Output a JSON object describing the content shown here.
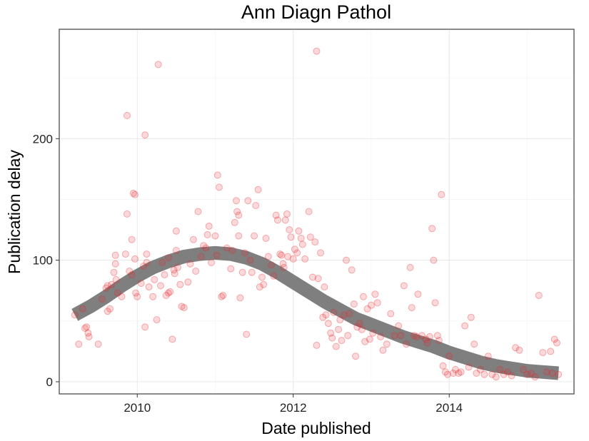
{
  "chart_data": {
    "type": "scatter",
    "title": "Ann Diagn Pathol",
    "xlabel": "Date published",
    "ylabel": "Publication delay",
    "x_axis_type": "date-year",
    "xlim": [
      2009.0,
      2015.6
    ],
    "ylim": [
      -10,
      290
    ],
    "x_ticks": [
      2010,
      2012,
      2014
    ],
    "y_ticks": [
      0,
      100,
      200
    ],
    "grid": true,
    "legend": "none",
    "point_color": "#e8262b",
    "smooth_color": "#7f7f7f",
    "points": [
      [
        2009.2,
        55
      ],
      [
        2009.25,
        31
      ],
      [
        2009.3,
        60
      ],
      [
        2009.33,
        44
      ],
      [
        2009.35,
        45
      ],
      [
        2009.37,
        40
      ],
      [
        2009.38,
        37
      ],
      [
        2009.5,
        31
      ],
      [
        2009.55,
        68
      ],
      [
        2009.6,
        77
      ],
      [
        2009.62,
        79
      ],
      [
        2009.62,
        58
      ],
      [
        2009.65,
        60
      ],
      [
        2009.67,
        80
      ],
      [
        2009.7,
        90
      ],
      [
        2009.72,
        104
      ],
      [
        2009.72,
        97
      ],
      [
        2009.73,
        84
      ],
      [
        2009.75,
        73
      ],
      [
        2009.8,
        70
      ],
      [
        2009.85,
        105
      ],
      [
        2009.87,
        138
      ],
      [
        2009.87,
        219
      ],
      [
        2009.9,
        91
      ],
      [
        2009.93,
        88
      ],
      [
        2009.93,
        117
      ],
      [
        2009.95,
        155
      ],
      [
        2009.97,
        154
      ],
      [
        2009.97,
        101
      ],
      [
        2009.98,
        73
      ],
      [
        2010.0,
        70
      ],
      [
        2010.05,
        81
      ],
      [
        2010.08,
        95
      ],
      [
        2010.1,
        45
      ],
      [
        2010.1,
        203
      ],
      [
        2010.12,
        105
      ],
      [
        2010.12,
        98
      ],
      [
        2010.15,
        78
      ],
      [
        2010.2,
        70
      ],
      [
        2010.22,
        84
      ],
      [
        2010.25,
        51
      ],
      [
        2010.27,
        261
      ],
      [
        2010.3,
        79
      ],
      [
        2010.32,
        98
      ],
      [
        2010.35,
        88
      ],
      [
        2010.37,
        71
      ],
      [
        2010.4,
        73
      ],
      [
        2010.4,
        102
      ],
      [
        2010.42,
        74
      ],
      [
        2010.45,
        35
      ],
      [
        2010.47,
        92
      ],
      [
        2010.48,
        89
      ],
      [
        2010.5,
        124
      ],
      [
        2010.5,
        108
      ],
      [
        2010.52,
        94
      ],
      [
        2010.55,
        80
      ],
      [
        2010.57,
        62
      ],
      [
        2010.6,
        61
      ],
      [
        2010.65,
        82
      ],
      [
        2010.68,
        97
      ],
      [
        2010.72,
        117
      ],
      [
        2010.75,
        91
      ],
      [
        2010.78,
        140
      ],
      [
        2010.82,
        103
      ],
      [
        2010.85,
        112
      ],
      [
        2010.88,
        110
      ],
      [
        2010.9,
        121
      ],
      [
        2010.92,
        128
      ],
      [
        2010.95,
        98
      ],
      [
        2011.0,
        120
      ],
      [
        2011.02,
        104
      ],
      [
        2011.03,
        170
      ],
      [
        2011.05,
        160
      ],
      [
        2011.08,
        70
      ],
      [
        2011.1,
        71
      ],
      [
        2011.15,
        110
      ],
      [
        2011.2,
        93
      ],
      [
        2011.22,
        108
      ],
      [
        2011.25,
        131
      ],
      [
        2011.27,
        149
      ],
      [
        2011.28,
        140
      ],
      [
        2011.3,
        137
      ],
      [
        2011.3,
        120
      ],
      [
        2011.32,
        69
      ],
      [
        2011.35,
        90
      ],
      [
        2011.38,
        106
      ],
      [
        2011.4,
        39
      ],
      [
        2011.42,
        149
      ],
      [
        2011.45,
        100
      ],
      [
        2011.47,
        90
      ],
      [
        2011.5,
        120
      ],
      [
        2011.52,
        145
      ],
      [
        2011.55,
        158
      ],
      [
        2011.57,
        78
      ],
      [
        2011.6,
        86
      ],
      [
        2011.62,
        80
      ],
      [
        2011.65,
        118
      ],
      [
        2011.68,
        103
      ],
      [
        2011.72,
        96
      ],
      [
        2011.75,
        87
      ],
      [
        2011.78,
        137
      ],
      [
        2011.8,
        133
      ],
      [
        2011.83,
        105
      ],
      [
        2011.85,
        104
      ],
      [
        2011.87,
        97
      ],
      [
        2011.88,
        94
      ],
      [
        2011.9,
        133
      ],
      [
        2011.92,
        138
      ],
      [
        2011.93,
        103
      ],
      [
        2011.95,
        125
      ],
      [
        2011.97,
        119
      ],
      [
        2012.0,
        101
      ],
      [
        2012.02,
        109
      ],
      [
        2012.05,
        106
      ],
      [
        2012.07,
        124
      ],
      [
        2012.1,
        118
      ],
      [
        2012.12,
        113
      ],
      [
        2012.15,
        101
      ],
      [
        2012.2,
        140
      ],
      [
        2012.22,
        119
      ],
      [
        2012.25,
        86
      ],
      [
        2012.28,
        115
      ],
      [
        2012.3,
        272
      ],
      [
        2012.3,
        30
      ],
      [
        2012.32,
        85
      ],
      [
        2012.35,
        106
      ],
      [
        2012.38,
        53
      ],
      [
        2012.4,
        78
      ],
      [
        2012.42,
        55
      ],
      [
        2012.45,
        48
      ],
      [
        2012.48,
        40
      ],
      [
        2012.5,
        36
      ],
      [
        2012.52,
        57
      ],
      [
        2012.55,
        29
      ],
      [
        2012.58,
        43
      ],
      [
        2012.6,
        51
      ],
      [
        2012.62,
        34
      ],
      [
        2012.65,
        55
      ],
      [
        2012.68,
        100
      ],
      [
        2012.7,
        38
      ],
      [
        2012.72,
        56
      ],
      [
        2012.75,
        92
      ],
      [
        2012.78,
        64
      ],
      [
        2012.8,
        21
      ],
      [
        2012.82,
        45
      ],
      [
        2012.85,
        48
      ],
      [
        2012.88,
        43
      ],
      [
        2012.9,
        70
      ],
      [
        2012.92,
        33
      ],
      [
        2012.95,
        60
      ],
      [
        2012.98,
        35
      ],
      [
        2013.0,
        63
      ],
      [
        2013.02,
        40
      ],
      [
        2013.05,
        72
      ],
      [
        2013.08,
        65
      ],
      [
        2013.12,
        37
      ],
      [
        2013.15,
        26
      ],
      [
        2013.2,
        31
      ],
      [
        2013.25,
        56
      ],
      [
        2013.3,
        38
      ],
      [
        2013.35,
        46
      ],
      [
        2013.38,
        38
      ],
      [
        2013.42,
        79
      ],
      [
        2013.45,
        31
      ],
      [
        2013.5,
        94
      ],
      [
        2013.52,
        61
      ],
      [
        2013.55,
        38
      ],
      [
        2013.58,
        37
      ],
      [
        2013.6,
        72
      ],
      [
        2013.65,
        38
      ],
      [
        2013.7,
        35
      ],
      [
        2013.72,
        32
      ],
      [
        2013.75,
        37
      ],
      [
        2013.78,
        126
      ],
      [
        2013.8,
        100
      ],
      [
        2013.82,
        65
      ],
      [
        2013.85,
        38
      ],
      [
        2013.87,
        34
      ],
      [
        2013.9,
        154
      ],
      [
        2013.92,
        13
      ],
      [
        2013.95,
        8
      ],
      [
        2013.98,
        6
      ],
      [
        2014.0,
        21
      ],
      [
        2014.05,
        7
      ],
      [
        2014.08,
        10
      ],
      [
        2014.12,
        7
      ],
      [
        2014.15,
        8
      ],
      [
        2014.2,
        46
      ],
      [
        2014.25,
        12
      ],
      [
        2014.28,
        53
      ],
      [
        2014.32,
        31
      ],
      [
        2014.35,
        7
      ],
      [
        2014.4,
        10
      ],
      [
        2014.45,
        6
      ],
      [
        2014.5,
        21
      ],
      [
        2014.55,
        6
      ],
      [
        2014.6,
        4
      ],
      [
        2014.65,
        10
      ],
      [
        2014.7,
        6
      ],
      [
        2014.75,
        8
      ],
      [
        2014.8,
        5
      ],
      [
        2014.85,
        28
      ],
      [
        2014.9,
        26
      ],
      [
        2014.95,
        10
      ],
      [
        2015.0,
        6
      ],
      [
        2015.05,
        7
      ],
      [
        2015.1,
        4
      ],
      [
        2015.15,
        71
      ],
      [
        2015.2,
        24
      ],
      [
        2015.25,
        8
      ],
      [
        2015.3,
        25
      ],
      [
        2015.32,
        7
      ],
      [
        2015.35,
        35
      ],
      [
        2015.38,
        32
      ],
      [
        2015.4,
        6
      ]
    ],
    "smooth": [
      [
        2009.2,
        55
      ],
      [
        2009.4,
        62
      ],
      [
        2009.6,
        70
      ],
      [
        2009.8,
        79
      ],
      [
        2010.0,
        87
      ],
      [
        2010.2,
        94
      ],
      [
        2010.4,
        99
      ],
      [
        2010.6,
        103
      ],
      [
        2010.8,
        105
      ],
      [
        2011.0,
        106
      ],
      [
        2011.2,
        105
      ],
      [
        2011.4,
        102
      ],
      [
        2011.6,
        97
      ],
      [
        2011.8,
        90
      ],
      [
        2012.0,
        82
      ],
      [
        2012.2,
        74
      ],
      [
        2012.4,
        66
      ],
      [
        2012.6,
        59
      ],
      [
        2012.8,
        52
      ],
      [
        2013.0,
        47
      ],
      [
        2013.2,
        42
      ],
      [
        2013.4,
        37
      ],
      [
        2013.6,
        33
      ],
      [
        2013.8,
        29
      ],
      [
        2014.0,
        24
      ],
      [
        2014.2,
        20
      ],
      [
        2014.4,
        16
      ],
      [
        2014.6,
        13
      ],
      [
        2014.8,
        11
      ],
      [
        2015.0,
        9
      ],
      [
        2015.2,
        8
      ],
      [
        2015.4,
        7
      ]
    ]
  }
}
